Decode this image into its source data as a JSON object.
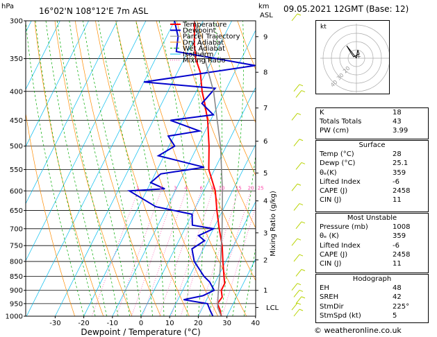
{
  "header": {
    "hpa": "hPa",
    "location": "16°02'N  108°12'E  7m  ASL",
    "km": "km",
    "asl": "ASL",
    "date": "09.05.2021  12GMT  (Base: 12)"
  },
  "legend": [
    "Temperature",
    "Dewpoint",
    "Parcel Trajectory",
    "Dry Adiabat",
    "Wet Adiabat",
    "Isotherm",
    "Mixing Ratio"
  ],
  "colors": {
    "temperature": "#ff0000",
    "dewpoint": "#0000cc",
    "parcel": "#888888",
    "dry_adiabat": "#ff8c00",
    "wet_adiabat": "#00aa00",
    "isotherm": "#00bbee",
    "mixing_ratio": "#ff44aa"
  },
  "chart_data": {
    "type": "line",
    "title": "",
    "xlabel": "Dewpoint / Temperature (°C)",
    "ylabel": "Mixing Ratio (g/kg)",
    "xlim": [
      -35,
      40
    ],
    "x_ticks": [
      "-30",
      "-20",
      "-10",
      "0",
      "10",
      "20",
      "30",
      "40"
    ],
    "pressure_levels": [
      "300",
      "350",
      "400",
      "450",
      "500",
      "550",
      "600",
      "650",
      "700",
      "750",
      "800",
      "850",
      "900",
      "950",
      "1000"
    ],
    "km_ticks": [
      {
        "km": "1",
        "p": 900
      },
      {
        "km": "2",
        "p": 795
      },
      {
        "km": "3",
        "p": 712
      },
      {
        "km": "4",
        "p": 625
      },
      {
        "km": "5",
        "p": 558
      },
      {
        "km": "6",
        "p": 490
      },
      {
        "km": "7",
        "p": 428
      },
      {
        "km": "8",
        "p": 370
      },
      {
        "km": "9",
        "p": 320
      }
    ],
    "lcl": {
      "label": "LCL",
      "p": 965
    },
    "mixing_ratio_labels": [
      "1",
      "2",
      "3",
      "4",
      "6",
      "8",
      "10",
      "15",
      "20",
      "25"
    ],
    "series": [
      {
        "name": "Temperature",
        "points": [
          [
            1000,
            28
          ],
          [
            975,
            26.5
          ],
          [
            950,
            24.5
          ],
          [
            925,
            25
          ],
          [
            900,
            23.5
          ],
          [
            875,
            23.5
          ],
          [
            850,
            22
          ],
          [
            800,
            19
          ],
          [
            750,
            16
          ],
          [
            700,
            12
          ],
          [
            650,
            8
          ],
          [
            600,
            4
          ],
          [
            550,
            -2
          ],
          [
            500,
            -6
          ],
          [
            450,
            -11
          ],
          [
            420,
            -15
          ],
          [
            400,
            -18
          ],
          [
            370,
            -22
          ],
          [
            350,
            -26
          ],
          [
            330,
            -29
          ],
          [
            300,
            -33
          ]
        ]
      },
      {
        "name": "Dewpoint",
        "points": [
          [
            1000,
            25.1
          ],
          [
            975,
            23
          ],
          [
            950,
            21
          ],
          [
            935,
            12
          ],
          [
            920,
            18
          ],
          [
            900,
            21
          ],
          [
            870,
            18
          ],
          [
            850,
            15
          ],
          [
            800,
            9
          ],
          [
            760,
            6
          ],
          [
            735,
            9
          ],
          [
            720,
            6
          ],
          [
            700,
            10
          ],
          [
            690,
            2
          ],
          [
            660,
            0
          ],
          [
            640,
            -14
          ],
          [
            600,
            -26
          ],
          [
            595,
            -14
          ],
          [
            580,
            -20
          ],
          [
            560,
            -18
          ],
          [
            545,
            -4
          ],
          [
            520,
            -22
          ],
          [
            500,
            -18
          ],
          [
            480,
            -22
          ],
          [
            470,
            -12
          ],
          [
            450,
            -24
          ],
          [
            440,
            -10
          ],
          [
            420,
            -16
          ],
          [
            395,
            -14
          ],
          [
            385,
            -40
          ],
          [
            360,
            -4
          ],
          [
            340,
            -34
          ],
          [
            320,
            -36
          ],
          [
            300,
            -40
          ]
        ]
      },
      {
        "name": "Parcel Trajectory",
        "points": [
          [
            1000,
            28
          ],
          [
            965,
            25.2
          ],
          [
            900,
            22.5
          ],
          [
            850,
            20.5
          ],
          [
            800,
            18.2
          ],
          [
            700,
            13
          ],
          [
            600,
            6.5
          ],
          [
            500,
            -2
          ],
          [
            400,
            -14
          ],
          [
            300,
            -33
          ]
        ]
      }
    ],
    "wind_barbs_p": [
      300,
      400,
      410,
      450,
      500,
      550,
      600,
      650,
      700,
      750,
      800,
      850,
      900,
      925,
      950,
      975,
      1000
    ]
  },
  "hodograph": {
    "kt_label": "kt",
    "ring_labels": [
      "40",
      "30",
      "20"
    ]
  },
  "indices": {
    "k": {
      "label": "K",
      "value": "18"
    },
    "tt": {
      "label": "Totals Totals",
      "value": "43"
    },
    "pw": {
      "label": "PW (cm)",
      "value": "3.99"
    }
  },
  "surface": {
    "title": "Surface",
    "rows": [
      {
        "label": "Temp (°C)",
        "value": "28"
      },
      {
        "label": "Dewp (°C)",
        "value": "25.1"
      },
      {
        "label": "θₑ(K)",
        "value": "359"
      },
      {
        "label": "Lifted Index",
        "value": "-6"
      },
      {
        "label": "CAPE (J)",
        "value": "2458"
      },
      {
        "label": "CIN (J)",
        "value": "11"
      }
    ]
  },
  "unstable": {
    "title": "Most Unstable",
    "rows": [
      {
        "label": "Pressure (mb)",
        "value": "1008"
      },
      {
        "label": "θₑ (K)",
        "value": "359"
      },
      {
        "label": "Lifted Index",
        "value": "-6"
      },
      {
        "label": "CAPE (J)",
        "value": "2458"
      },
      {
        "label": "CIN (J)",
        "value": "11"
      }
    ]
  },
  "hodo_stats": {
    "title": "Hodograph",
    "rows": [
      {
        "label": "EH",
        "value": "48"
      },
      {
        "label": "SREH",
        "value": "42"
      },
      {
        "label": "StmDir",
        "value": "225°"
      },
      {
        "label": "StmSpd (kt)",
        "value": "5"
      }
    ]
  },
  "footer": {
    "copyright": "© weatheronline.co.uk"
  }
}
